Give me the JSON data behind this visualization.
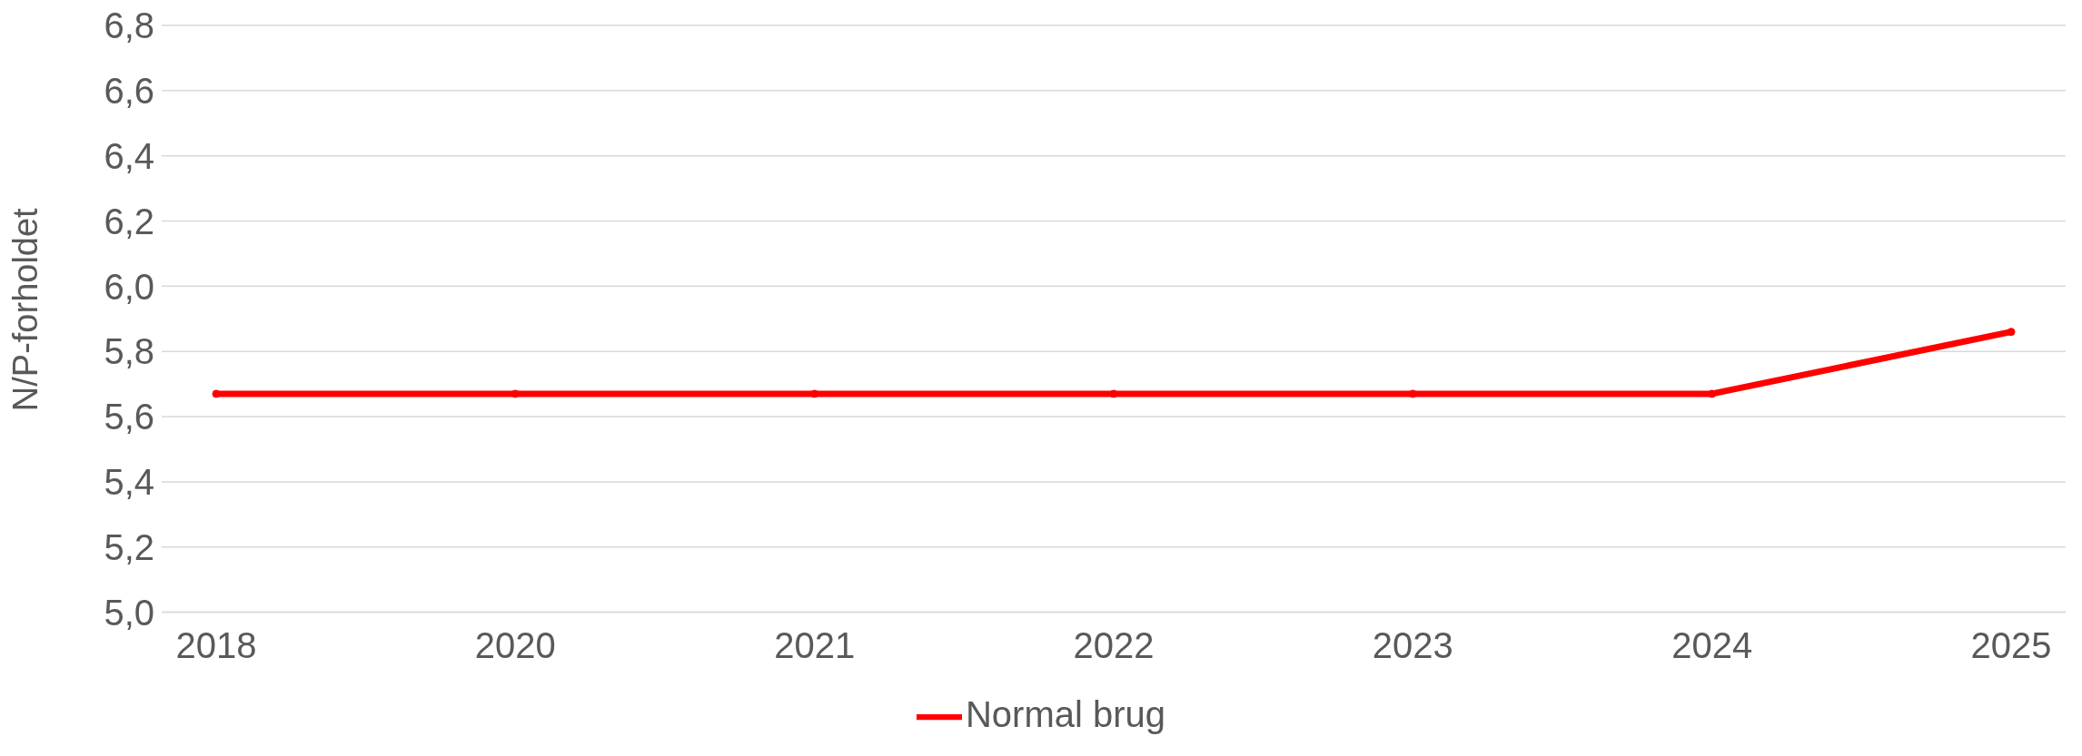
{
  "chart_data": {
    "type": "line",
    "ylabel": "N/P-forholdet",
    "categories": [
      "2018",
      "2020",
      "2021",
      "2022",
      "2023",
      "2024",
      "2025"
    ],
    "series": [
      {
        "name": "Normal brug",
        "color": "#ff0000",
        "values": [
          5.67,
          5.67,
          5.67,
          5.67,
          5.67,
          5.67,
          5.86
        ]
      }
    ],
    "ylim": [
      5.0,
      6.8
    ],
    "yticks": [
      {
        "value": 5.0,
        "label": "5,0"
      },
      {
        "value": 5.2,
        "label": "5,2"
      },
      {
        "value": 5.4,
        "label": "5,4"
      },
      {
        "value": 5.6,
        "label": "5,6"
      },
      {
        "value": 5.8,
        "label": "5,8"
      },
      {
        "value": 6.0,
        "label": "6,0"
      },
      {
        "value": 6.2,
        "label": "6,2"
      },
      {
        "value": 6.4,
        "label": "6,4"
      },
      {
        "value": 6.6,
        "label": "6,6"
      },
      {
        "value": 6.8,
        "label": "6,8"
      }
    ],
    "grid": "y",
    "legend": "bottom",
    "marker": "circle",
    "line_style": "solid"
  }
}
